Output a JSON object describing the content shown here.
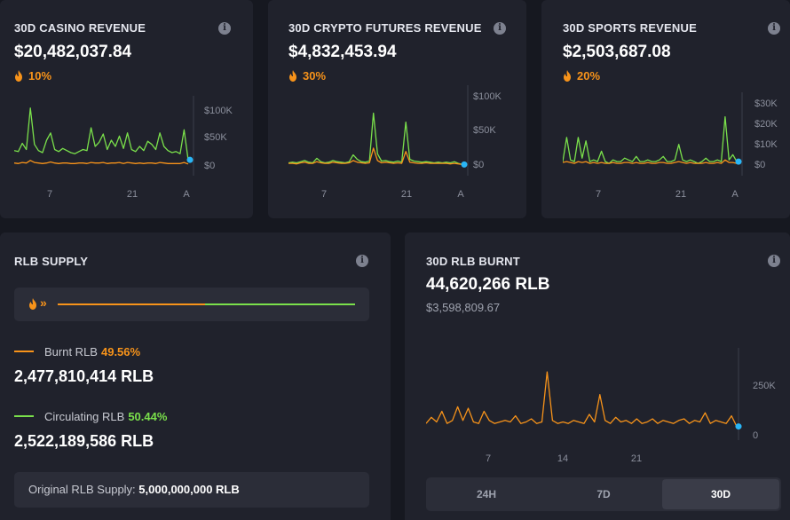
{
  "casino": {
    "title": "30D CASINO REVENUE",
    "value": "$20,482,037.84",
    "pct": "10%",
    "chart_data": {
      "type": "line",
      "x_ticks": [
        "7",
        "21",
        "A"
      ],
      "y_ticks": [
        "$100K",
        "$50K",
        "$0"
      ],
      "ylim": [
        0,
        120000
      ],
      "series": [
        {
          "color": "#7ae04b",
          "values": [
            28000,
            26000,
            42000,
            30000,
            110000,
            40000,
            28000,
            24000,
            48000,
            62000,
            30000,
            26000,
            32000,
            28000,
            24000,
            22000,
            26000,
            30000,
            28000,
            72000,
            36000,
            44000,
            60000,
            30000,
            48000,
            36000,
            56000,
            32000,
            62000,
            30000,
            26000,
            36000,
            28000,
            46000,
            40000,
            30000,
            62000,
            36000,
            28000,
            24000,
            26000,
            22000,
            68000,
            10000
          ]
        },
        {
          "color": "#f7931a",
          "values": [
            4000,
            3000,
            5000,
            4000,
            9000,
            5000,
            4000,
            3000,
            4000,
            6000,
            4000,
            3000,
            4000,
            4000,
            3000,
            3000,
            4000,
            4000,
            3000,
            5000,
            4000,
            4000,
            5000,
            3000,
            4000,
            4000,
            5000,
            3000,
            5000,
            4000,
            3000,
            4000,
            3000,
            4000,
            4000,
            3000,
            5000,
            4000,
            3000,
            3000,
            3000,
            3000,
            5000,
            2000
          ]
        }
      ]
    }
  },
  "crypto": {
    "title": "30D CRYPTO FUTURES REVENUE",
    "value": "$4,832,453.94",
    "pct": "30%",
    "chart_data": {
      "type": "line",
      "x_ticks": [
        "7",
        "21",
        "A"
      ],
      "y_ticks": [
        "$100K",
        "$50K",
        "$0"
      ],
      "ylim": [
        0,
        110000
      ],
      "series": [
        {
          "color": "#7ae04b",
          "values": [
            4000,
            5000,
            4000,
            6000,
            8000,
            5000,
            4000,
            12000,
            6000,
            4000,
            5000,
            8000,
            6000,
            5000,
            4000,
            6000,
            18000,
            10000,
            6000,
            5000,
            7000,
            92000,
            20000,
            7000,
            8000,
            6000,
            5000,
            7000,
            5000,
            76000,
            10000,
            7000,
            6000,
            5000,
            6000,
            5000,
            4000,
            5000,
            4000,
            5000,
            4000,
            6000,
            3000,
            1000
          ]
        },
        {
          "color": "#f7931a",
          "values": [
            3000,
            3000,
            2000,
            4000,
            5000,
            3000,
            3000,
            6000,
            4000,
            3000,
            3000,
            5000,
            4000,
            3000,
            3000,
            4000,
            8000,
            5000,
            4000,
            3000,
            4000,
            30000,
            8000,
            4000,
            5000,
            4000,
            3000,
            4000,
            3000,
            24000,
            5000,
            4000,
            3000,
            3000,
            4000,
            3000,
            3000,
            3000,
            3000,
            3000,
            2000,
            3000,
            2000,
            1000
          ]
        }
      ]
    }
  },
  "sports": {
    "title": "30D SPORTS REVENUE",
    "value": "$2,503,687.08",
    "pct": "20%",
    "chart_data": {
      "type": "line",
      "x_ticks": [
        "7",
        "21",
        "A"
      ],
      "y_ticks": [
        "$30K",
        "$20K",
        "$10K",
        "$0"
      ],
      "ylim": [
        0,
        36000
      ],
      "series": [
        {
          "color": "#7ae04b",
          "values": [
            2000,
            16000,
            3000,
            2000,
            16000,
            4000,
            14000,
            2000,
            3000,
            2000,
            8000,
            2000,
            1000,
            3000,
            2000,
            2000,
            4000,
            3000,
            2000,
            5000,
            2000,
            2000,
            3000,
            2000,
            2000,
            3000,
            5000,
            2000,
            2000,
            3000,
            12000,
            3000,
            2000,
            3000,
            2000,
            1000,
            2000,
            4000,
            2000,
            2000,
            3000,
            2000,
            28000,
            3000,
            6000,
            2000
          ]
        },
        {
          "color": "#f7931a",
          "values": [
            1500,
            2000,
            1500,
            1000,
            2000,
            1500,
            2000,
            1000,
            1500,
            1000,
            1500,
            1000,
            1000,
            1500,
            1000,
            1000,
            1500,
            1500,
            1000,
            1500,
            1000,
            1000,
            1500,
            1000,
            1000,
            1500,
            1500,
            1000,
            1000,
            1500,
            2000,
            1500,
            1000,
            1500,
            1000,
            1000,
            1000,
            1500,
            1000,
            1000,
            1500,
            1000,
            3000,
            1500,
            1500,
            1000
          ]
        }
      ]
    }
  },
  "supply": {
    "title": "RLB SUPPLY",
    "burnt_label": "Burnt RLB",
    "burnt_pct": "49.56%",
    "burnt_value": "2,477,810,414 RLB",
    "circ_label": "Circulating RLB",
    "circ_pct": "50.44%",
    "circ_value": "2,522,189,586 RLB",
    "original_label": "Original RLB Supply:",
    "original_value": "5,000,000,000 RLB",
    "burnt_fraction": 0.4956
  },
  "burnt": {
    "title": "30D RLB BURNT",
    "value": "44,620,266 RLB",
    "usd_value": "$3,598,809.67",
    "tabs": [
      {
        "label": "24H",
        "active": false
      },
      {
        "label": "7D",
        "active": false
      },
      {
        "label": "30D",
        "active": true
      }
    ],
    "chart_data": {
      "type": "line",
      "x_ticks": [
        "7",
        "14",
        "21"
      ],
      "y_ticks": [
        "250K",
        "0"
      ],
      "ylim": [
        0,
        480000
      ],
      "series": [
        {
          "color": "#f7931a",
          "values": [
            40000,
            80000,
            50000,
            120000,
            40000,
            60000,
            150000,
            60000,
            140000,
            50000,
            40000,
            120000,
            60000,
            40000,
            50000,
            60000,
            50000,
            90000,
            40000,
            50000,
            70000,
            40000,
            50000,
            380000,
            60000,
            40000,
            50000,
            40000,
            60000,
            50000,
            40000,
            100000,
            50000,
            230000,
            60000,
            40000,
            80000,
            50000,
            60000,
            40000,
            70000,
            40000,
            50000,
            70000,
            40000,
            60000,
            50000,
            40000,
            60000,
            70000,
            40000,
            60000,
            50000,
            110000,
            40000,
            60000,
            50000,
            40000,
            90000,
            20000
          ]
        }
      ]
    }
  }
}
